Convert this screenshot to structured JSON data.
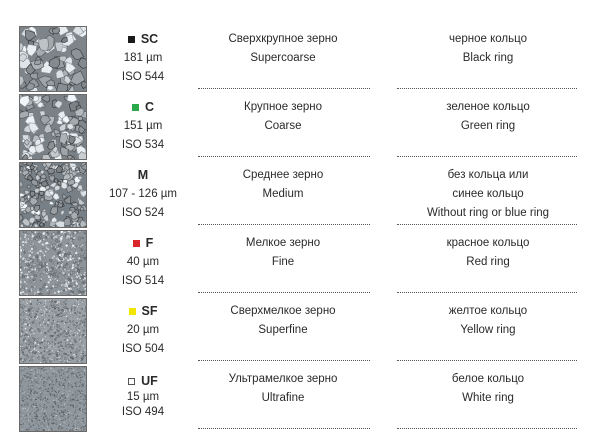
{
  "rows": [
    {
      "code": "SC",
      "marker_color": "#1a1a1a",
      "marker_fill": true,
      "size": "181 µm",
      "iso": "ISO 544",
      "grain_ru": "Сверхкрупное зерно",
      "grain_en": "Supercoarse",
      "ring_lines": [
        "черное кольцо",
        "Black ring"
      ],
      "texture": "supercoarse"
    },
    {
      "code": "C",
      "marker_color": "#2aa84a",
      "marker_fill": true,
      "size": "151 µm",
      "iso": "ISO 534",
      "grain_ru": "Крупное зерно",
      "grain_en": "Coarse",
      "ring_lines": [
        "зеленое кольцо",
        "Green ring"
      ],
      "texture": "coarse"
    },
    {
      "code": "M",
      "marker_color": "",
      "marker_fill": false,
      "size": "107 - 126 µm",
      "iso": "ISO 524",
      "grain_ru": "Среднее зерно",
      "grain_en": "Medium",
      "ring_lines": [
        "без кольца или",
        "синее кольцо",
        "Without ring or blue ring"
      ],
      "texture": "medium"
    },
    {
      "code": "F",
      "marker_color": "#d9262b",
      "marker_fill": true,
      "size": "40 µm",
      "iso": "ISO 514",
      "grain_ru": "Мелкое зерно",
      "grain_en": "Fine",
      "ring_lines": [
        "красное кольцо",
        "Red ring"
      ],
      "texture": "fine"
    },
    {
      "code": "SF",
      "marker_color": "#f2e600",
      "marker_fill": true,
      "size": "20 µm",
      "iso": "ISO 504",
      "grain_ru": "Сверхмелкое зерно",
      "grain_en": "Superfine",
      "ring_lines": [
        "желтое кольцо",
        "Yellow ring"
      ],
      "texture": "superfine"
    },
    {
      "code": "UF",
      "marker_color": "#ffffff",
      "marker_fill": true,
      "size": "15 µm",
      "iso": "ISO 494",
      "grain_ru": "Ультрамелкое зерно",
      "grain_en": "Ultrafine",
      "ring_lines": [
        "белое кольцо",
        "White ring"
      ],
      "texture": "ultrafine"
    }
  ]
}
